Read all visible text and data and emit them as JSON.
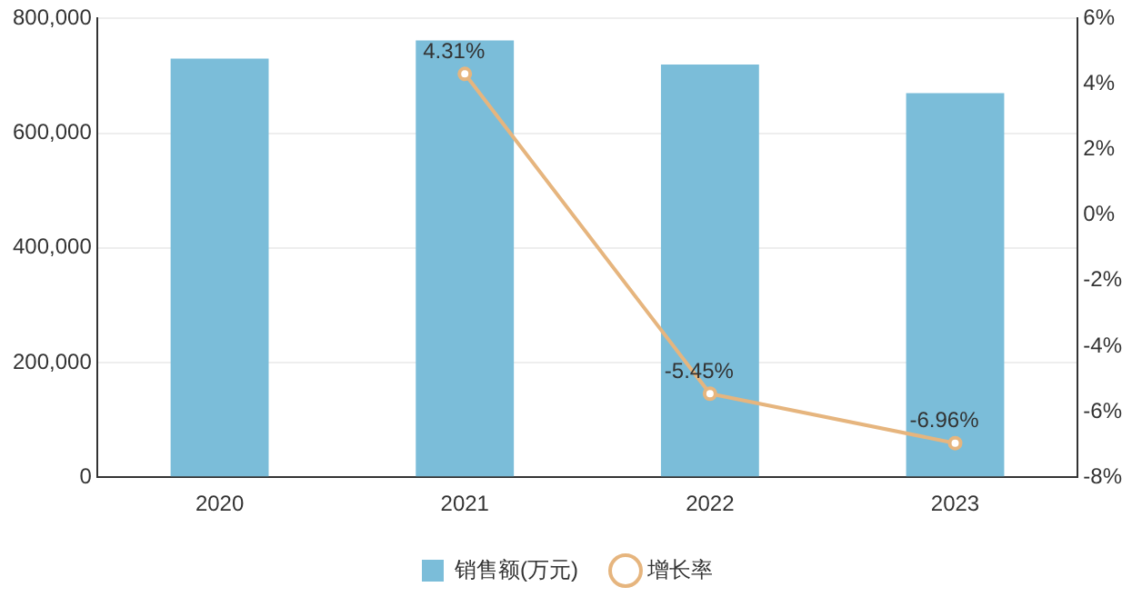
{
  "chart_data": {
    "type": "bar",
    "categories": [
      "2020",
      "2021",
      "2022",
      "2023"
    ],
    "series": [
      {
        "name": "销售额(万元)",
        "color": "#7bbdd9",
        "values": [
          730000,
          762000,
          720000,
          670000
        ]
      },
      {
        "name": "增长率",
        "type": "line",
        "axis": "y2",
        "color": "#e6b57e",
        "values": [
          null,
          4.31,
          -5.45,
          -6.96
        ],
        "value_labels": [
          null,
          "4.31%",
          "-5.45%",
          "-6.96%"
        ]
      }
    ],
    "ylim": [
      0,
      800000
    ],
    "yticks": [
      {
        "value": 0,
        "label": "0"
      },
      {
        "value": 200000,
        "label": "200,000"
      },
      {
        "value": 400000,
        "label": "400,000"
      },
      {
        "value": 600000,
        "label": "600,000"
      },
      {
        "value": 800000,
        "label": "800,000"
      }
    ],
    "y2lim": [
      -8,
      6
    ],
    "y2ticks": [
      {
        "value": -8,
        "label": "-8%"
      },
      {
        "value": -6,
        "label": "-6%"
      },
      {
        "value": -4,
        "label": "-4%"
      },
      {
        "value": -2,
        "label": "-2%"
      },
      {
        "value": 0,
        "label": "0%"
      },
      {
        "value": 2,
        "label": "2%"
      },
      {
        "value": 4,
        "label": "4%"
      },
      {
        "value": 6,
        "label": "6%"
      }
    ],
    "grid": "y",
    "legend": "bottom",
    "marker": "circle",
    "line_style": "solid"
  }
}
